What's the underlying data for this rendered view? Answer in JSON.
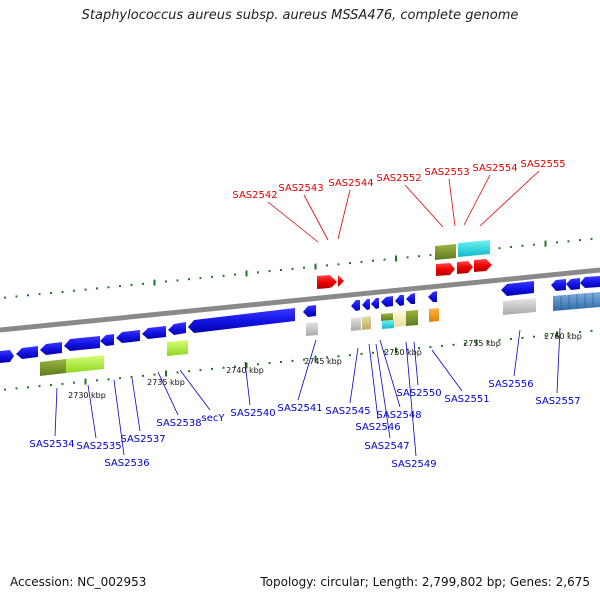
{
  "title": "Staphylococcus aureus subsp. aureus MSSA476, complete genome",
  "footer": {
    "accession_label": "Accession: NC_002953",
    "topology": "Topology: circular",
    "length": "Length: 2,799,802 bp",
    "genes": "Genes: 2,675"
  },
  "colors": {
    "forward_label": "#dd0000",
    "reverse_label": "#0000cc",
    "backbone": "#8a8a8a",
    "tick": "#1f7a1f"
  },
  "scale_labels": [
    {
      "text": "2730 kbp",
      "kbp": 2730
    },
    {
      "text": "2735 kbp",
      "kbp": 2735
    },
    {
      "text": "2740 kbp",
      "kbp": 2740
    },
    {
      "text": "2745 kbp",
      "kbp": 2745
    },
    {
      "text": "2750 kbp",
      "kbp": 2750
    },
    {
      "text": "2755 kbp",
      "kbp": 2755
    },
    {
      "text": "2760 kbp",
      "kbp": 2760
    }
  ],
  "forward_genes": [
    "SAS2542",
    "SAS2543",
    "SAS2544",
    "SAS2552",
    "SAS2553",
    "SAS2554",
    "SAS2555"
  ],
  "reverse_genes": [
    "SAS2534",
    "SAS2535",
    "SAS2536",
    "SAS2537",
    "SAS2538",
    "secY",
    "SAS2540",
    "SAS2541",
    "SAS2545",
    "SAS2546",
    "SAS2547",
    "SAS2548",
    "SAS2549",
    "SAS2550",
    "SAS2551",
    "SAS2556",
    "SAS2557"
  ]
}
